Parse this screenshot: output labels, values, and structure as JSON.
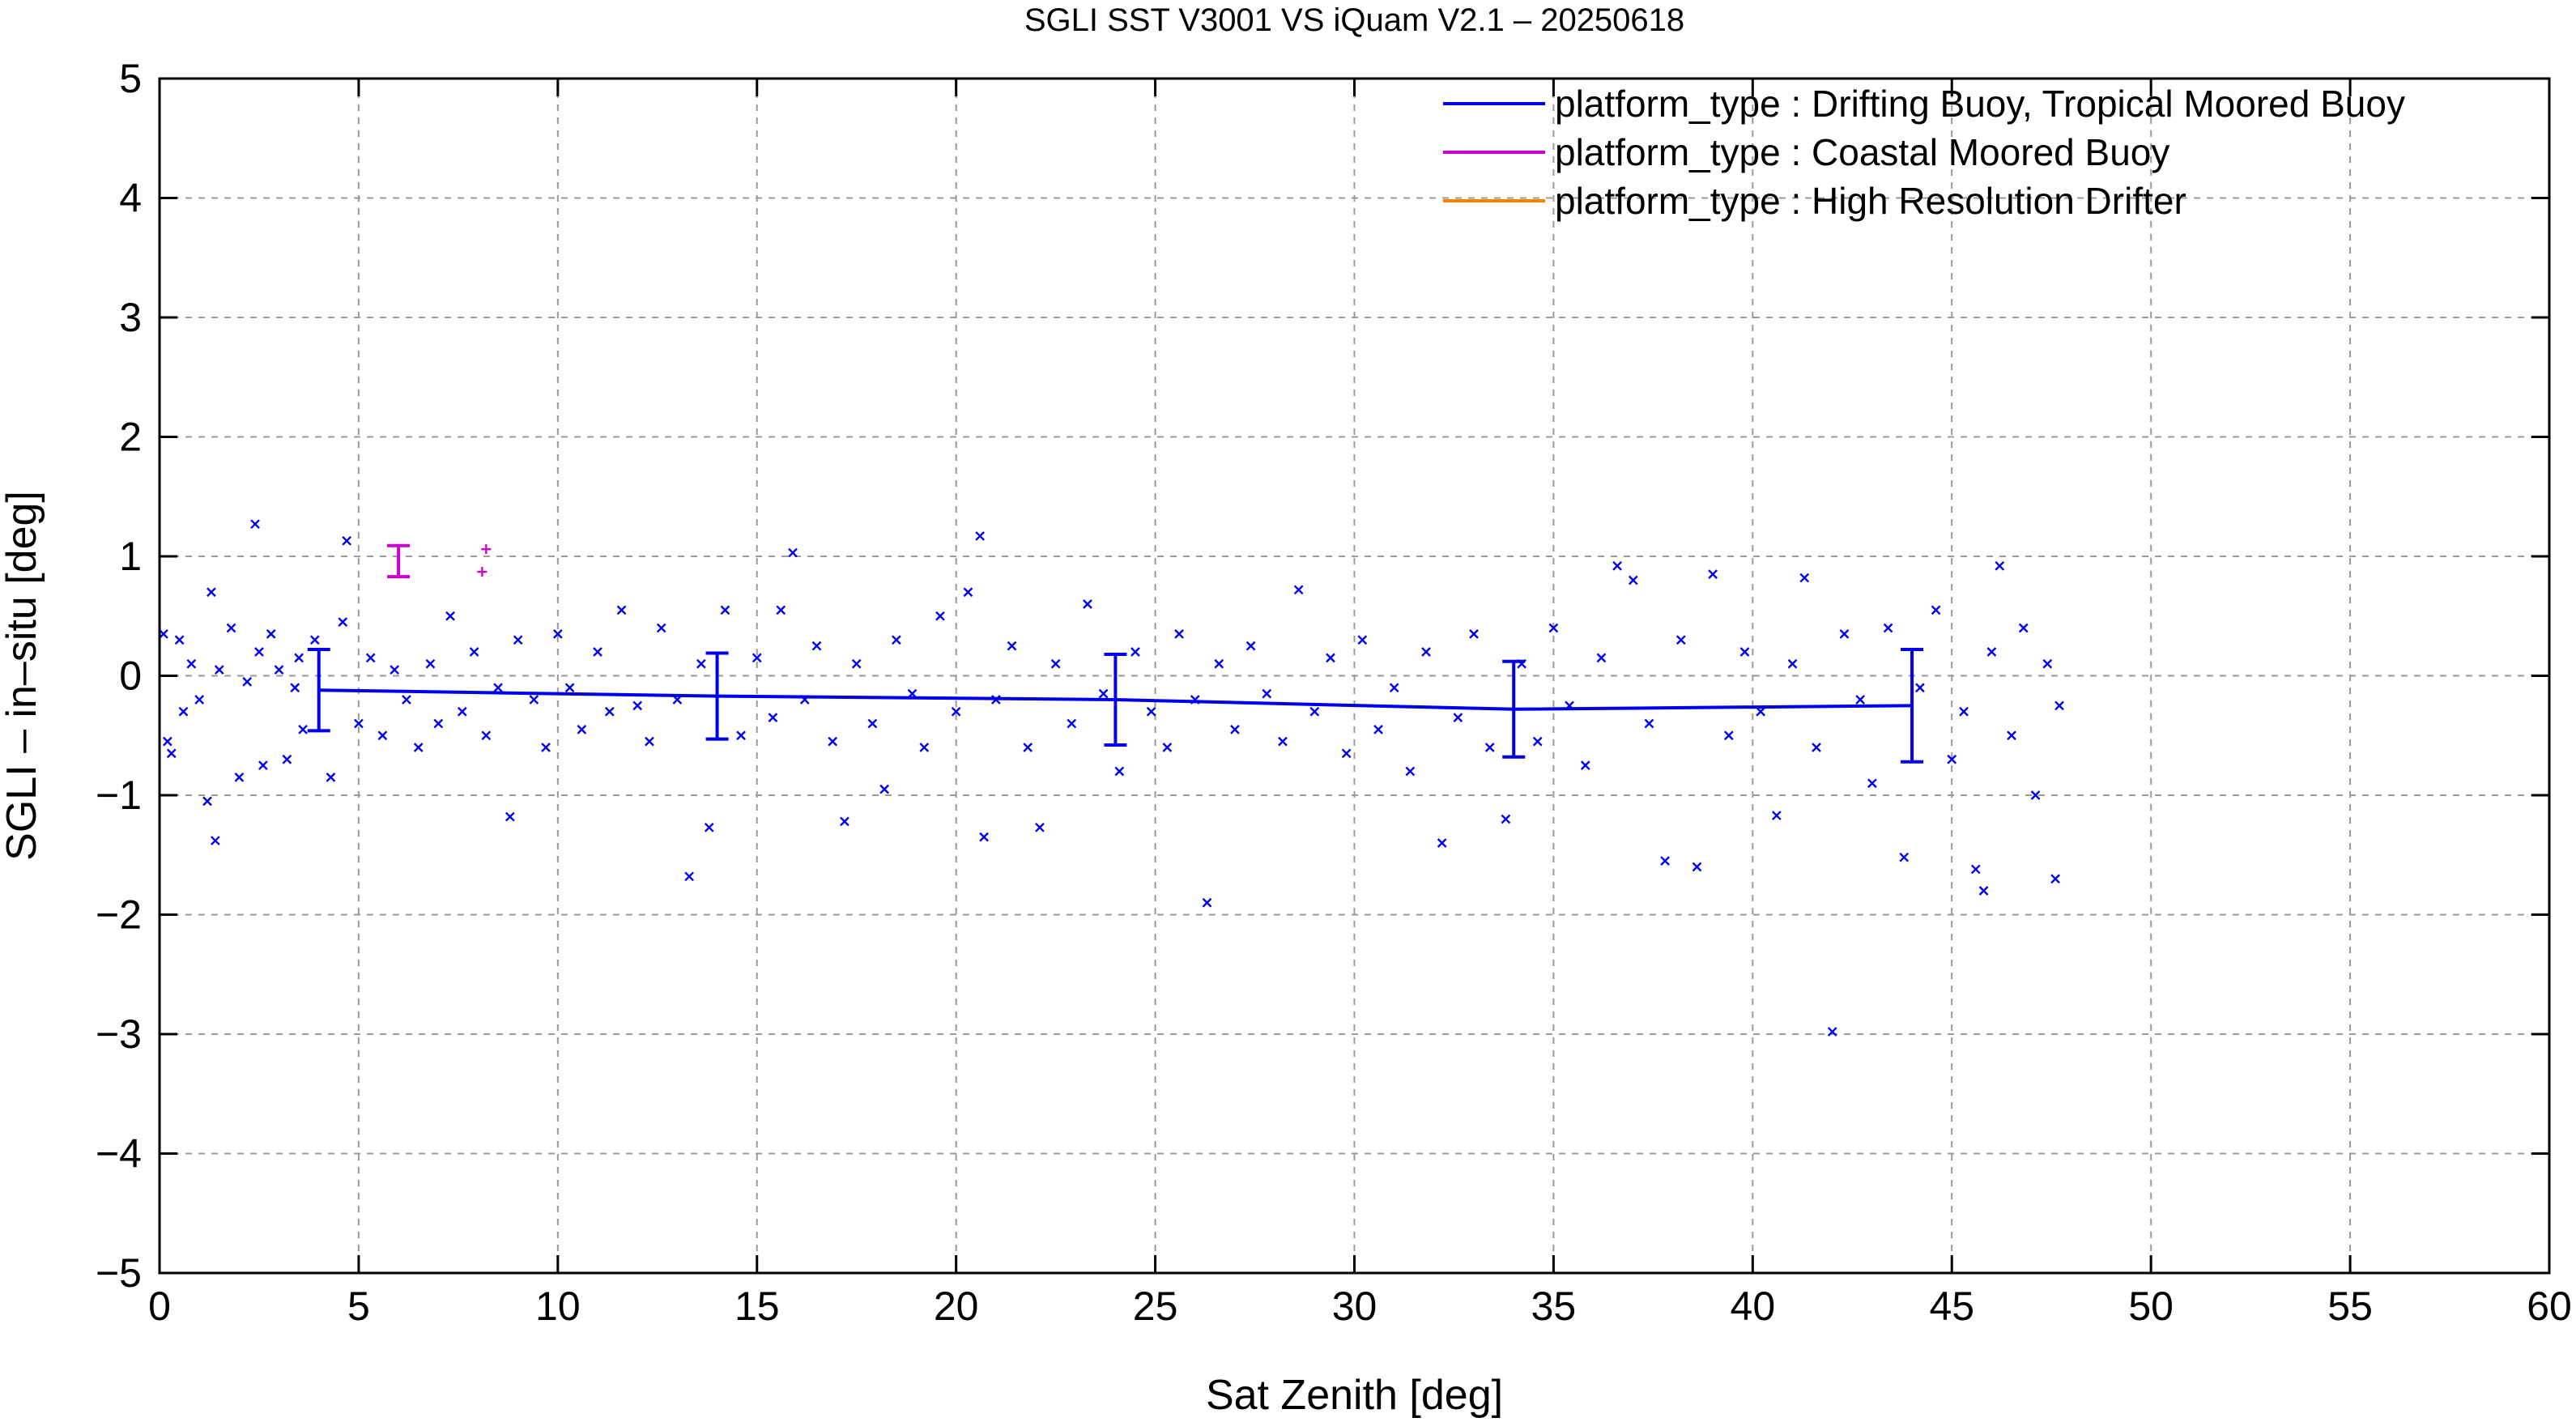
{
  "chart_data": {
    "type": "scatter",
    "title": "SGLI SST V3001 VS iQuam V2.1  – 20250618",
    "xlabel": "Sat Zenith [deg]",
    "ylabel": "SGLI – in–situ [deg]",
    "xlim": [
      0,
      60
    ],
    "ylim": [
      -5,
      5
    ],
    "x_ticks": [
      0,
      5,
      10,
      15,
      20,
      25,
      30,
      35,
      40,
      45,
      50,
      55,
      60
    ],
    "y_ticks": [
      -5,
      -4,
      -3,
      -2,
      -1,
      0,
      1,
      2,
      3,
      4,
      5
    ],
    "x_tick_labels": [
      "0",
      "5",
      "10",
      "15",
      "20",
      "25",
      "30",
      "35",
      "40",
      "45",
      "50",
      "55",
      "60"
    ],
    "y_tick_labels": [
      "−5",
      "−4",
      "−3",
      "−2",
      "−1",
      "0",
      "1",
      "2",
      "3",
      "4",
      "5"
    ],
    "grid": true,
    "legend_position": "top-right",
    "series": [
      {
        "name": "platform_type : Drifting Buoy, Tropical Moored Buoy",
        "color": "#0000ee",
        "marker": "x",
        "mean_line": {
          "x": [
            4,
            14,
            24,
            34,
            44
          ],
          "y": [
            -0.12,
            -0.17,
            -0.2,
            -0.28,
            -0.25
          ],
          "err": [
            0.34,
            0.36,
            0.38,
            0.4,
            0.47
          ]
        },
        "points": [
          [
            0.1,
            0.35
          ],
          [
            0.2,
            -0.55
          ],
          [
            0.3,
            -0.65
          ],
          [
            0.5,
            0.3
          ],
          [
            0.6,
            -0.3
          ],
          [
            0.8,
            0.1
          ],
          [
            1.0,
            -0.2
          ],
          [
            1.2,
            -1.05
          ],
          [
            1.3,
            0.7
          ],
          [
            1.4,
            -1.38
          ],
          [
            1.5,
            0.05
          ],
          [
            1.8,
            0.4
          ],
          [
            2.0,
            -0.85
          ],
          [
            2.2,
            -0.05
          ],
          [
            2.4,
            1.27
          ],
          [
            2.5,
            0.2
          ],
          [
            2.6,
            -0.75
          ],
          [
            2.8,
            0.35
          ],
          [
            3.0,
            0.05
          ],
          [
            3.2,
            -0.7
          ],
          [
            3.4,
            -0.1
          ],
          [
            3.5,
            0.15
          ],
          [
            3.6,
            -0.45
          ],
          [
            3.9,
            0.3
          ],
          [
            4.3,
            -0.85
          ],
          [
            4.6,
            0.45
          ],
          [
            4.7,
            1.13
          ],
          [
            5.0,
            -0.4
          ],
          [
            5.3,
            0.15
          ],
          [
            5.6,
            -0.5
          ],
          [
            5.9,
            0.05
          ],
          [
            6.2,
            -0.2
          ],
          [
            6.5,
            -0.6
          ],
          [
            6.8,
            0.1
          ],
          [
            7.0,
            -0.4
          ],
          [
            7.3,
            0.5
          ],
          [
            7.6,
            -0.3
          ],
          [
            7.9,
            0.2
          ],
          [
            8.2,
            -0.5
          ],
          [
            8.5,
            -0.1
          ],
          [
            8.8,
            -1.18
          ],
          [
            9.0,
            0.3
          ],
          [
            9.4,
            -0.2
          ],
          [
            9.7,
            -0.6
          ],
          [
            10.0,
            0.35
          ],
          [
            10.3,
            -0.1
          ],
          [
            10.6,
            -0.45
          ],
          [
            11.0,
            0.2
          ],
          [
            11.3,
            -0.3
          ],
          [
            11.6,
            0.55
          ],
          [
            12.0,
            -0.25
          ],
          [
            12.3,
            -0.55
          ],
          [
            12.6,
            0.4
          ],
          [
            13.0,
            -0.2
          ],
          [
            13.3,
            -1.68
          ],
          [
            13.6,
            0.1
          ],
          [
            13.8,
            -1.27
          ],
          [
            14.2,
            0.55
          ],
          [
            14.6,
            -0.5
          ],
          [
            15.0,
            0.15
          ],
          [
            15.4,
            -0.35
          ],
          [
            15.6,
            0.55
          ],
          [
            15.9,
            1.03
          ],
          [
            16.2,
            -0.2
          ],
          [
            16.5,
            0.25
          ],
          [
            16.9,
            -0.55
          ],
          [
            17.2,
            -1.22
          ],
          [
            17.5,
            0.1
          ],
          [
            17.9,
            -0.4
          ],
          [
            18.2,
            -0.95
          ],
          [
            18.5,
            0.3
          ],
          [
            18.9,
            -0.15
          ],
          [
            19.2,
            -0.6
          ],
          [
            19.6,
            0.5
          ],
          [
            20.0,
            -0.3
          ],
          [
            20.3,
            0.7
          ],
          [
            20.6,
            1.17
          ],
          [
            20.7,
            -1.35
          ],
          [
            21.0,
            -0.2
          ],
          [
            21.4,
            0.25
          ],
          [
            21.8,
            -0.6
          ],
          [
            22.1,
            -1.27
          ],
          [
            22.5,
            0.1
          ],
          [
            22.9,
            -0.4
          ],
          [
            23.3,
            0.6
          ],
          [
            23.7,
            -0.15
          ],
          [
            24.1,
            -0.8
          ],
          [
            24.5,
            0.2
          ],
          [
            24.9,
            -0.3
          ],
          [
            25.3,
            -0.6
          ],
          [
            25.6,
            0.35
          ],
          [
            26.0,
            -0.2
          ],
          [
            26.3,
            -1.9
          ],
          [
            26.6,
            0.1
          ],
          [
            27.0,
            -0.45
          ],
          [
            27.4,
            0.25
          ],
          [
            27.8,
            -0.15
          ],
          [
            28.2,
            -0.55
          ],
          [
            28.6,
            0.72
          ],
          [
            29.0,
            -0.3
          ],
          [
            29.4,
            0.15
          ],
          [
            29.8,
            -0.65
          ],
          [
            30.2,
            0.3
          ],
          [
            30.6,
            -0.45
          ],
          [
            31.0,
            -0.1
          ],
          [
            31.4,
            -0.8
          ],
          [
            31.8,
            0.2
          ],
          [
            32.2,
            -1.4
          ],
          [
            32.6,
            -0.35
          ],
          [
            33.0,
            0.35
          ],
          [
            33.4,
            -0.6
          ],
          [
            33.8,
            -1.2
          ],
          [
            34.2,
            0.1
          ],
          [
            34.6,
            -0.55
          ],
          [
            35.0,
            0.4
          ],
          [
            35.4,
            -0.25
          ],
          [
            35.8,
            -0.75
          ],
          [
            36.2,
            0.15
          ],
          [
            36.6,
            0.92
          ],
          [
            37.0,
            0.8
          ],
          [
            37.4,
            -0.4
          ],
          [
            37.8,
            -1.55
          ],
          [
            38.2,
            0.3
          ],
          [
            38.6,
            -1.6
          ],
          [
            39.0,
            0.85
          ],
          [
            39.4,
            -0.5
          ],
          [
            39.8,
            0.2
          ],
          [
            40.2,
            -0.3
          ],
          [
            40.6,
            -1.17
          ],
          [
            41.0,
            0.1
          ],
          [
            41.3,
            0.82
          ],
          [
            41.6,
            -0.6
          ],
          [
            42.0,
            -2.98
          ],
          [
            42.3,
            0.35
          ],
          [
            42.7,
            -0.2
          ],
          [
            43.0,
            -0.9
          ],
          [
            43.4,
            0.4
          ],
          [
            43.8,
            -1.52
          ],
          [
            44.2,
            -0.1
          ],
          [
            44.6,
            0.55
          ],
          [
            45.0,
            -0.7
          ],
          [
            45.3,
            -0.3
          ],
          [
            45.6,
            -1.62
          ],
          [
            45.8,
            -1.8
          ],
          [
            46.0,
            0.2
          ],
          [
            46.2,
            0.92
          ],
          [
            46.5,
            -0.5
          ],
          [
            46.8,
            0.4
          ],
          [
            47.1,
            -1.0
          ],
          [
            47.4,
            0.1
          ],
          [
            47.6,
            -1.7
          ],
          [
            47.7,
            -0.25
          ]
        ]
      },
      {
        "name": "platform_type : Coastal Moored Buoy",
        "color": "#cc00cc",
        "marker": "+",
        "mean_line": {
          "x": [
            6.0
          ],
          "y": [
            0.96
          ],
          "err": [
            0.13
          ]
        },
        "points": [
          [
            8.2,
            1.06
          ],
          [
            8.1,
            0.87
          ]
        ]
      },
      {
        "name": "platform_type : High Resolution Drifter",
        "color": "#ff8000",
        "marker": "+",
        "points": []
      }
    ]
  }
}
